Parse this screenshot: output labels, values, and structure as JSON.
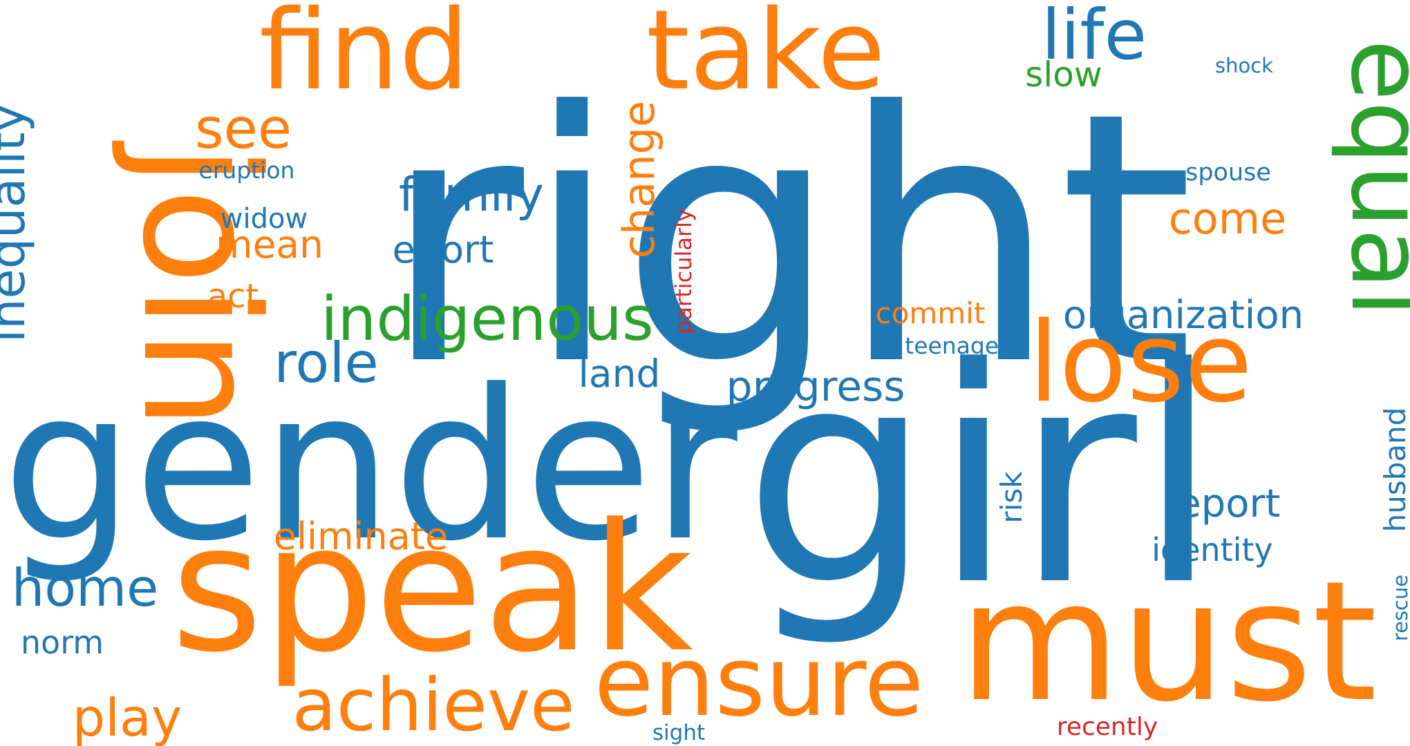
{
  "palette": {
    "blue": "#1f77b4",
    "orange": "#ff7f0e",
    "green": "#2ca02c",
    "red": "#d62728"
  },
  "words": [
    {
      "id": "right",
      "text": "right",
      "color": "blue",
      "vertical": false
    },
    {
      "id": "gender",
      "text": "gender",
      "color": "blue",
      "vertical": false
    },
    {
      "id": "girl",
      "text": "girl",
      "color": "blue",
      "vertical": false
    },
    {
      "id": "speak",
      "text": "speak",
      "color": "orange",
      "vertical": false
    },
    {
      "id": "join",
      "text": "join",
      "color": "orange",
      "vertical": true
    },
    {
      "id": "must",
      "text": "must",
      "color": "orange",
      "vertical": false
    },
    {
      "id": "find",
      "text": "find",
      "color": "orange",
      "vertical": false
    },
    {
      "id": "take",
      "text": "take",
      "color": "orange",
      "vertical": false
    },
    {
      "id": "lose",
      "text": "lose",
      "color": "orange",
      "vertical": false
    },
    {
      "id": "ensure",
      "text": "ensure",
      "color": "orange",
      "vertical": false
    },
    {
      "id": "equal",
      "text": "equal",
      "color": "green",
      "vertical": true
    },
    {
      "id": "achieve",
      "text": "achieve",
      "color": "orange",
      "vertical": false
    },
    {
      "id": "life",
      "text": "life",
      "color": "blue",
      "vertical": false
    },
    {
      "id": "indigenous",
      "text": "indigenous",
      "color": "green",
      "vertical": false
    },
    {
      "id": "inequality",
      "text": "inequality",
      "color": "blue",
      "vertical": true
    },
    {
      "id": "home",
      "text": "home",
      "color": "blue",
      "vertical": false
    },
    {
      "id": "play",
      "text": "play",
      "color": "orange",
      "vertical": false
    },
    {
      "id": "role",
      "text": "role",
      "color": "blue",
      "vertical": false
    },
    {
      "id": "see",
      "text": "see",
      "color": "orange",
      "vertical": false
    },
    {
      "id": "family",
      "text": "family",
      "color": "blue",
      "vertical": false
    },
    {
      "id": "change",
      "text": "change",
      "color": "orange",
      "vertical": true
    },
    {
      "id": "progress",
      "text": "progress",
      "color": "blue",
      "vertical": false
    },
    {
      "id": "organization",
      "text": "organization",
      "color": "blue",
      "vertical": false
    },
    {
      "id": "report",
      "text": "report",
      "color": "blue",
      "vertical": false
    },
    {
      "id": "come",
      "text": "come",
      "color": "orange",
      "vertical": false
    },
    {
      "id": "eliminate",
      "text": "eliminate",
      "color": "orange",
      "vertical": false
    },
    {
      "id": "effort",
      "text": "effort",
      "color": "blue",
      "vertical": false
    },
    {
      "id": "mean",
      "text": "mean",
      "color": "orange",
      "vertical": false
    },
    {
      "id": "land",
      "text": "land",
      "color": "blue",
      "vertical": false
    },
    {
      "id": "identity",
      "text": "identity",
      "color": "blue",
      "vertical": false
    },
    {
      "id": "husband",
      "text": "husband",
      "color": "blue",
      "vertical": true
    },
    {
      "id": "risk",
      "text": "risk",
      "color": "blue",
      "vertical": true
    },
    {
      "id": "slow",
      "text": "slow",
      "color": "green",
      "vertical": false
    },
    {
      "id": "norm",
      "text": "norm",
      "color": "blue",
      "vertical": false
    },
    {
      "id": "act",
      "text": "act",
      "color": "orange",
      "vertical": false
    },
    {
      "id": "widow",
      "text": "widow",
      "color": "blue",
      "vertical": false
    },
    {
      "id": "commit",
      "text": "commit",
      "color": "orange",
      "vertical": false
    },
    {
      "id": "eruption",
      "text": "eruption",
      "color": "blue",
      "vertical": false
    },
    {
      "id": "spouse",
      "text": "spouse",
      "color": "blue",
      "vertical": false
    },
    {
      "id": "teenager",
      "text": "teenager",
      "color": "blue",
      "vertical": false
    },
    {
      "id": "recently",
      "text": "recently",
      "color": "red",
      "vertical": false
    },
    {
      "id": "particularly",
      "text": "particularly",
      "color": "red",
      "vertical": true
    },
    {
      "id": "shock",
      "text": "shock",
      "color": "blue",
      "vertical": false
    },
    {
      "id": "sight",
      "text": "sight",
      "color": "blue",
      "vertical": false
    },
    {
      "id": "rescue",
      "text": "rescue",
      "color": "blue",
      "vertical": true
    }
  ]
}
